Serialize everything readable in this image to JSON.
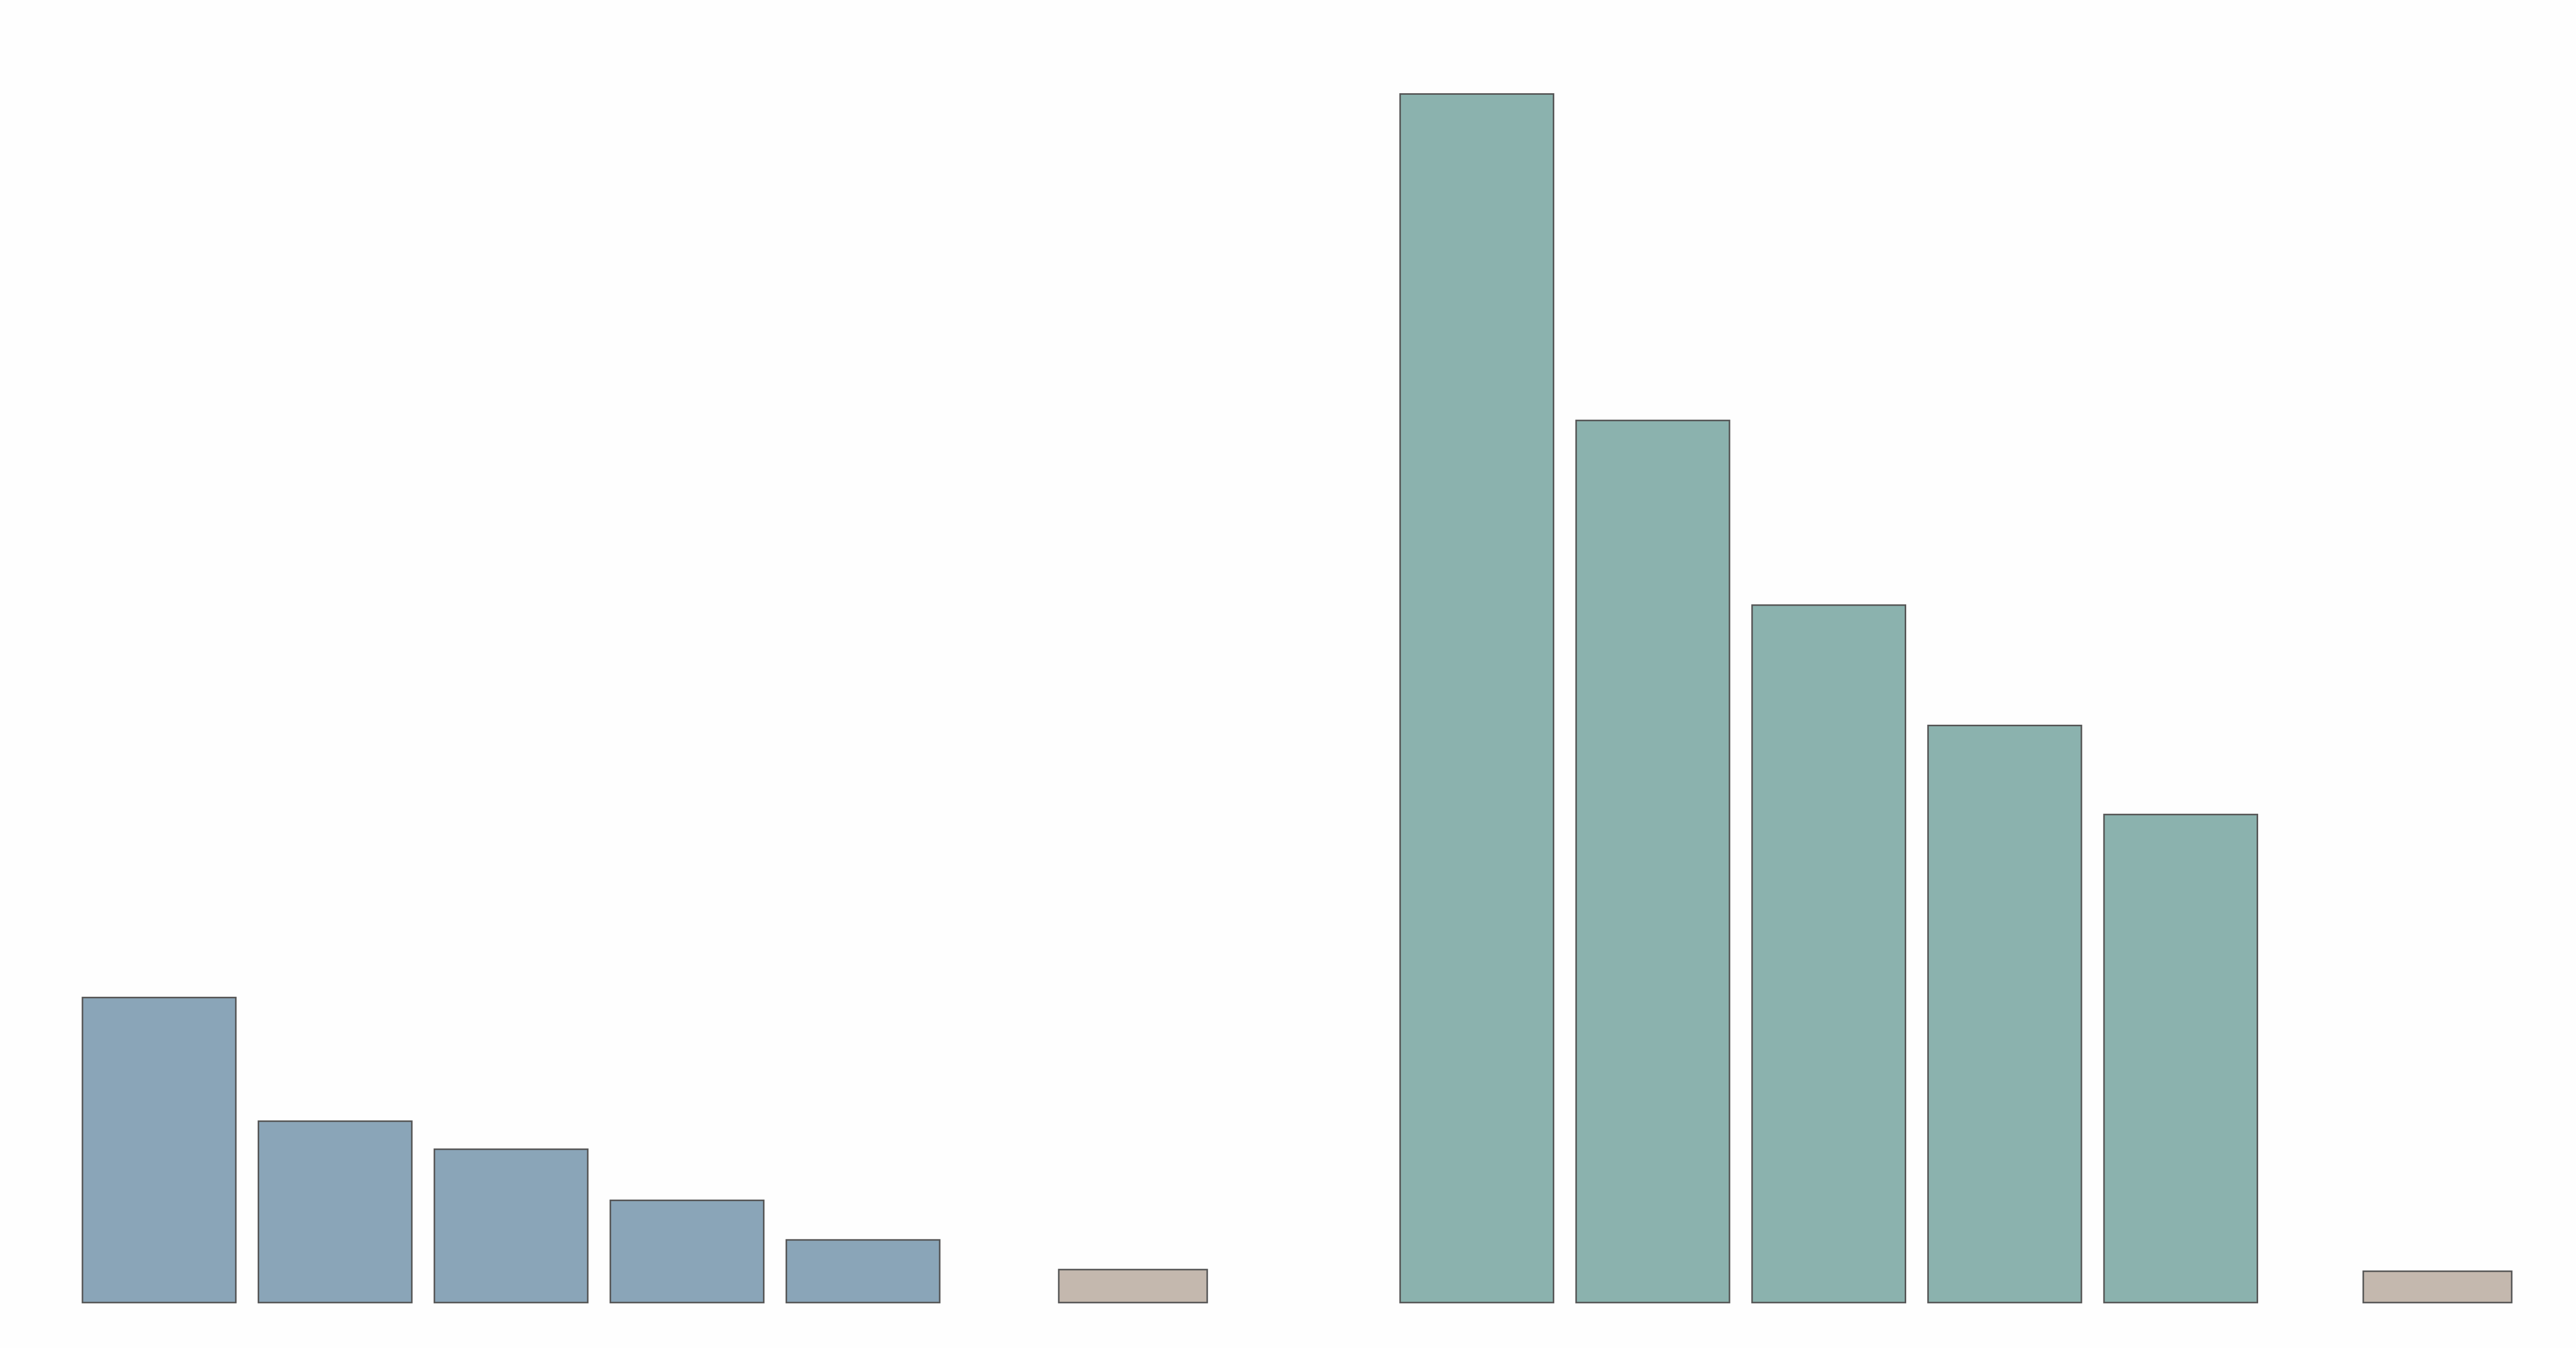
{
  "chart_data": [
    {
      "type": "bar",
      "categories": [
        null,
        null,
        null,
        null,
        null,
        null
      ],
      "values": [
        185,
        110,
        93,
        62,
        38,
        20
      ],
      "colors": [
        "#8aa5b8",
        "#8aa5b8",
        "#8aa5b8",
        "#8aa5b8",
        "#8aa5b8",
        "#c4b8ae"
      ],
      "ylim": [
        0,
        790
      ]
    },
    {
      "type": "bar",
      "categories": [
        null,
        null,
        null,
        null,
        null,
        null
      ],
      "values": [
        733,
        535,
        423,
        350,
        296,
        19
      ],
      "colors": [
        "#8bb2ae",
        "#8bb2ae",
        "#8bb2ae",
        "#8bb2ae",
        "#8bb2ae",
        "#c4b8ae"
      ],
      "ylim": [
        0,
        790
      ]
    }
  ]
}
